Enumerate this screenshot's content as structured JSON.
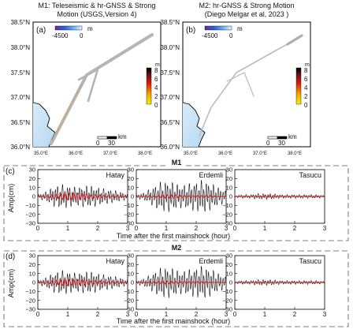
{
  "figure": {
    "maps": [
      {
        "panel_label": "(a)",
        "title_line1": "M1: Teleseismic & hr-GNSS & Strong",
        "title_line2": "Motion (USGS,Version 4)",
        "bathy_min": "-4500",
        "bathy_max": "0",
        "bathy_unit": "m",
        "slip_unit": "m",
        "slip_ticks": [
          "8",
          "6",
          "4",
          "2",
          "0"
        ],
        "scale_label": "km",
        "scale_ticks": [
          "0",
          "30"
        ]
      },
      {
        "panel_label": "(b)",
        "title_line1": "M2: hr-GNSS & Strong Motion",
        "title_line2": "(Diego Melgar et al, 2023 )",
        "bathy_min": "-4500",
        "bathy_max": "0",
        "bathy_unit": "m",
        "slip_unit": "m",
        "slip_ticks": [
          "8",
          "6",
          "4",
          "2",
          "0"
        ],
        "scale_label": "km",
        "scale_ticks": [
          "0",
          "30"
        ]
      }
    ],
    "lat_ticks": [
      "38.5°N",
      "38.0°N",
      "37.5°N",
      "37.0°N",
      "36.5°N",
      "36.0°N"
    ],
    "lon_ticks": [
      "35.0°E",
      "36.0°E",
      "37.0°E",
      "38.0°E"
    ],
    "groups": [
      {
        "panel_label": "(c)",
        "title": "M1"
      },
      {
        "panel_label": "(d)",
        "title": "M2"
      }
    ],
    "colors": {
      "observed": "#000000",
      "simulated": "#e0141e",
      "land": "#ffffff",
      "sea_deep": "#3a5fc0",
      "sea_shallow": "#cfe8f8",
      "fault": "#b0b0b0"
    }
  },
  "chart_data": [
    {
      "type": "line",
      "panel": "(c)",
      "group": "M1",
      "ylabel": "Amp(cm)",
      "xlabel": "Time after the first mainshock (hour)",
      "xlim": [
        0,
        3
      ],
      "ylim": [
        -30,
        30
      ],
      "xticks": [
        "0",
        "1",
        "2",
        "3"
      ],
      "yticks": [
        "30",
        "20",
        "10",
        "0",
        "−10",
        "−20",
        "−30"
      ],
      "stations": [
        {
          "name": "Hatay",
          "x": [
            0,
            0.25,
            0.5,
            0.75,
            1.0,
            1.25,
            1.5,
            1.75,
            2.0,
            2.25,
            2.5,
            2.75,
            3.0
          ],
          "observed_amplitude": [
            2,
            5,
            10,
            13,
            12,
            10,
            11,
            12,
            10,
            8,
            7,
            5,
            3
          ],
          "simulated": [
            0,
            1,
            2,
            3,
            4,
            4,
            3,
            2,
            2,
            1,
            1,
            1,
            0
          ]
        },
        {
          "name": "Erdemli",
          "x": [
            0,
            0.25,
            0.5,
            0.75,
            1.0,
            1.25,
            1.5,
            1.75,
            2.0,
            2.25,
            2.5,
            2.75,
            3.0
          ],
          "observed_amplitude": [
            2,
            4,
            9,
            15,
            17,
            15,
            12,
            14,
            16,
            18,
            14,
            10,
            6
          ],
          "simulated": [
            0,
            0,
            1,
            1,
            2,
            2,
            1,
            1,
            1,
            1,
            1,
            0,
            0
          ]
        },
        {
          "name": "Tasucu",
          "x": [
            0,
            0.25,
            0.5,
            0.75,
            1.0,
            1.25,
            1.5,
            1.75,
            2.0,
            2.25,
            2.5,
            2.75,
            3.0
          ],
          "observed_amplitude": [
            1,
            2,
            2,
            3,
            3,
            3,
            2,
            2,
            2,
            2,
            2,
            2,
            1
          ],
          "simulated": [
            0,
            0,
            0,
            0,
            1,
            1,
            0,
            0,
            0,
            0,
            0,
            0,
            0
          ]
        }
      ]
    },
    {
      "type": "line",
      "panel": "(d)",
      "group": "M2",
      "ylabel": "Amp(cm)",
      "xlabel": "Time after the first mainshock (hour)",
      "xlim": [
        0,
        3
      ],
      "ylim": [
        -30,
        30
      ],
      "xticks": [
        "0",
        "1",
        "2",
        "3"
      ],
      "yticks": [
        "30",
        "20",
        "10",
        "0",
        "−10",
        "−20",
        "−30"
      ],
      "stations": [
        {
          "name": "Hatay",
          "x": [
            0,
            0.25,
            0.5,
            0.75,
            1.0,
            1.25,
            1.5,
            1.75,
            2.0,
            2.25,
            2.5,
            2.75,
            3.0
          ],
          "observed_amplitude": [
            2,
            5,
            10,
            13,
            12,
            10,
            11,
            12,
            10,
            8,
            7,
            5,
            3
          ],
          "simulated": [
            0,
            1,
            2,
            3,
            4,
            3,
            3,
            2,
            2,
            1,
            1,
            1,
            0
          ]
        },
        {
          "name": "Erdemli",
          "x": [
            0,
            0.25,
            0.5,
            0.75,
            1.0,
            1.25,
            1.5,
            1.75,
            2.0,
            2.25,
            2.5,
            2.75,
            3.0
          ],
          "observed_amplitude": [
            2,
            4,
            9,
            15,
            17,
            15,
            12,
            14,
            16,
            18,
            14,
            10,
            6
          ],
          "simulated": [
            0,
            0,
            1,
            1,
            2,
            1,
            1,
            1,
            1,
            1,
            0,
            0,
            0
          ]
        },
        {
          "name": "Tasucu",
          "x": [
            0,
            0.25,
            0.5,
            0.75,
            1.0,
            1.25,
            1.5,
            1.75,
            2.0,
            2.25,
            2.5,
            2.75,
            3.0
          ],
          "observed_amplitude": [
            1,
            2,
            2,
            3,
            3,
            3,
            2,
            2,
            2,
            2,
            2,
            2,
            1
          ],
          "simulated": [
            0,
            0,
            0,
            0,
            1,
            0,
            0,
            0,
            0,
            0,
            0,
            0,
            0
          ]
        }
      ]
    }
  ]
}
